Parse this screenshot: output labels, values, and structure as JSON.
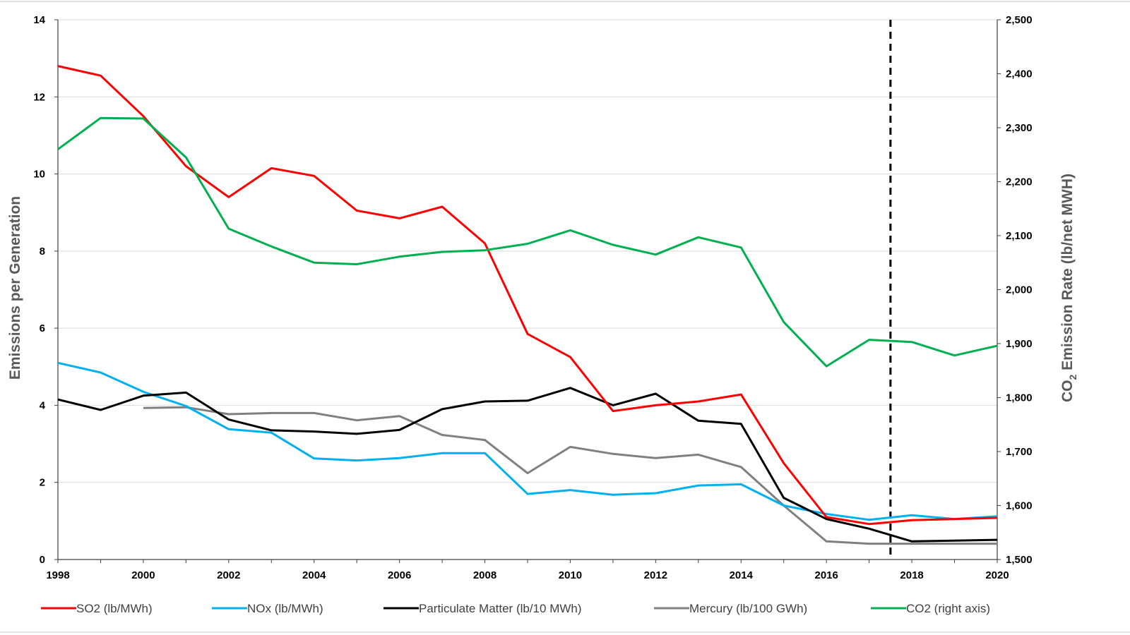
{
  "chart_data": {
    "type": "line",
    "xlabel": "",
    "ylabel_left": "Emissions per Generation",
    "ylabel_right_prefix": "CO",
    "ylabel_right_sub": "2",
    "ylabel_right_suffix": " Emission Rate (lb/net MWH)",
    "x": [
      1998,
      1999,
      2000,
      2001,
      2002,
      2003,
      2004,
      2005,
      2006,
      2007,
      2008,
      2009,
      2010,
      2011,
      2012,
      2013,
      2014,
      2015,
      2016,
      2017,
      2018,
      2019,
      2020
    ],
    "xlim": [
      1998,
      2020
    ],
    "x_ticks": [
      "1998",
      "2000",
      "2002",
      "2004",
      "2006",
      "2008",
      "2010",
      "2012",
      "2014",
      "2016",
      "2018",
      "2020"
    ],
    "ylim_left": [
      0,
      14
    ],
    "y_ticks_left": [
      "0",
      "2",
      "4",
      "6",
      "8",
      "10",
      "12",
      "14"
    ],
    "ylim_right": [
      1500,
      2500
    ],
    "y_ticks_right": [
      "1,500",
      "1,600",
      "1,700",
      "1,800",
      "1,900",
      "2,000",
      "2,100",
      "2,200",
      "2,300",
      "2,400",
      "2,500"
    ],
    "grid": "horizontal",
    "vertical_marker_x": 2017.5,
    "legend_position": "bottom",
    "series": [
      {
        "name": "SO2 (lb/MWh)",
        "axis": "left",
        "color": "#ff0000",
        "values": [
          12.8,
          12.55,
          11.5,
          10.2,
          9.4,
          10.15,
          9.95,
          9.05,
          8.85,
          9.15,
          8.2,
          5.85,
          5.25,
          3.85,
          4.0,
          4.1,
          4.28,
          2.5,
          1.1,
          0.92,
          1.02,
          1.05,
          1.08
        ]
      },
      {
        "name": "NOx (lb/MWh)",
        "axis": "left",
        "color": "#00b0f0",
        "values": [
          5.1,
          4.85,
          4.35,
          3.98,
          3.38,
          3.29,
          2.62,
          2.57,
          2.63,
          2.76,
          2.76,
          1.7,
          1.8,
          1.68,
          1.72,
          1.92,
          1.95,
          1.4,
          1.18,
          1.03,
          1.15,
          1.05,
          1.12
        ]
      },
      {
        "name": "Particulate Matter (lb/10 MWh)",
        "axis": "left",
        "color": "#000000",
        "values": [
          4.15,
          3.88,
          4.25,
          4.33,
          3.63,
          3.35,
          3.32,
          3.26,
          3.36,
          3.9,
          4.1,
          4.12,
          4.45,
          4.0,
          4.3,
          3.6,
          3.52,
          1.6,
          1.05,
          0.8,
          0.47,
          0.49,
          0.51
        ]
      },
      {
        "name": "Mercury (lb/100 GWh)",
        "axis": "left",
        "color": "#808080",
        "values": [
          null,
          null,
          3.93,
          3.95,
          3.77,
          3.8,
          3.8,
          3.61,
          3.72,
          3.23,
          3.1,
          2.24,
          2.92,
          2.74,
          2.63,
          2.72,
          2.4,
          1.4,
          0.47,
          0.41,
          0.41,
          0.41,
          0.41
        ]
      },
      {
        "name": "CO2 (right axis)",
        "axis": "right",
        "color": "#00b050",
        "values": [
          2260,
          2318,
          2317,
          2245,
          2113,
          2080,
          2050,
          2047,
          2061,
          2070,
          2073,
          2085,
          2110,
          2083,
          2065,
          2097,
          2078,
          1940,
          1858,
          1907,
          1903,
          1878,
          1896
        ]
      }
    ]
  }
}
